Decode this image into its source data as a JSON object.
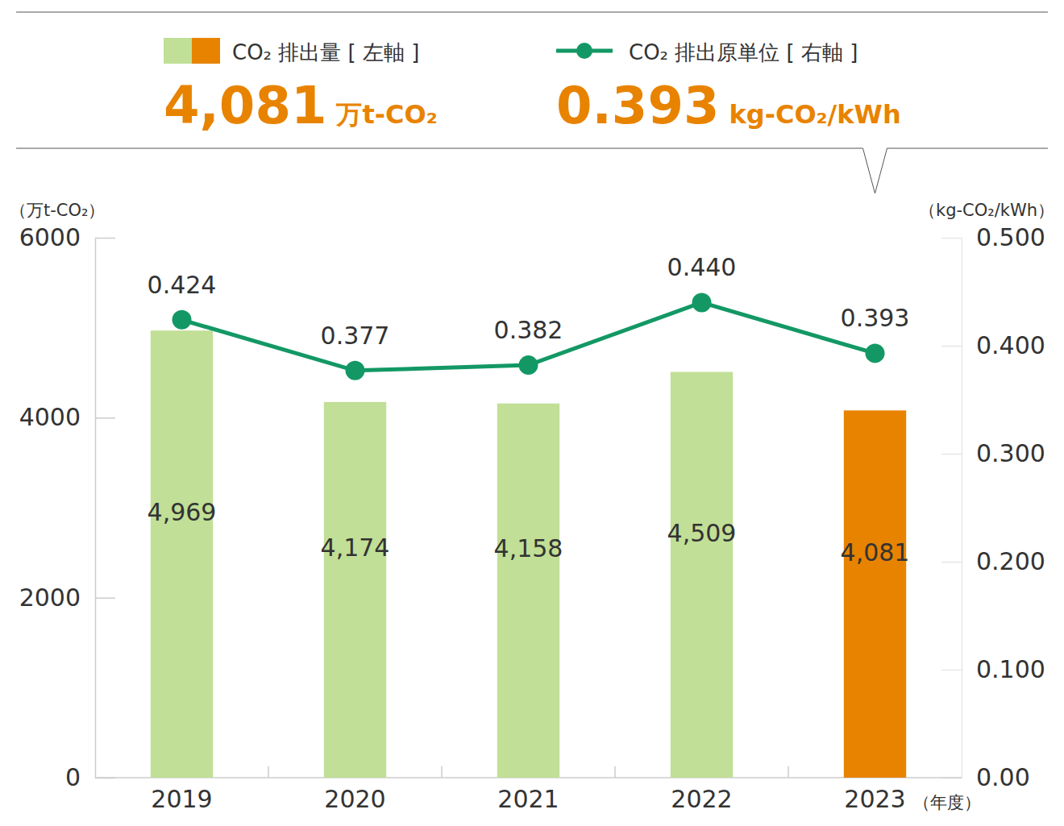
{
  "chart_data": {
    "type": "bar",
    "categories": [
      "2019",
      "2020",
      "2021",
      "2022",
      "2023"
    ],
    "x_label": "（年度）",
    "y_label": "（万t-CO₂）",
    "y2_label": "（kg-CO₂/kWh）",
    "annotations": [
      {
        "text": "4,081",
        "unit": "万t-CO₂"
      },
      {
        "text": "0.393",
        "unit": "kg-CO₂/kWh"
      }
    ],
    "series": [
      {
        "name": "CO₂ 排出量 [ 左軸 ]",
        "type": "bar",
        "colors": [
          "#c1df96",
          "#c1df96",
          "#c1df96",
          "#c1df96",
          "#e88300"
        ],
        "values": [
          4969,
          4174,
          4158,
          4509,
          4081
        ],
        "value_labels": [
          "4,969",
          "4,174",
          "4,158",
          "4,509",
          "4,081"
        ]
      },
      {
        "name": "CO₂ 排出原単位 [ 右軸 ]",
        "type": "line",
        "axis": "y2",
        "color": "#139865",
        "marker": "circle",
        "values": [
          0.424,
          0.377,
          0.382,
          0.44,
          0.393
        ],
        "value_labels": [
          "0.424",
          "0.377",
          "0.382",
          "0.440",
          "0.393"
        ]
      }
    ],
    "ylim": [
      0,
      6000
    ],
    "yticks": [
      0,
      2000,
      4000,
      6000
    ],
    "y2lim": [
      0,
      0.5
    ],
    "y2ticks": [
      {
        "value": 0,
        "label": "0.00"
      },
      {
        "value": 0.1,
        "label": "0.100"
      },
      {
        "value": 0.2,
        "label": "0.200"
      },
      {
        "value": 0.3,
        "label": "0.300"
      },
      {
        "value": 0.4,
        "label": "0.400"
      },
      {
        "value": 0.5,
        "label": "0.500"
      }
    ],
    "data_labels": true
  }
}
